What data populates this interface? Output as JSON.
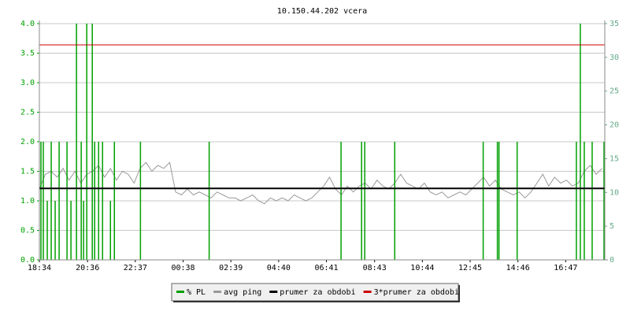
{
  "chart_data": {
    "type": "rrd-line",
    "title": "10.150.44.202 vcera",
    "xlim": [
      0,
      1432
    ],
    "xticks": [
      {
        "value": 0,
        "label": "18:34"
      },
      {
        "value": 122,
        "label": "20:36"
      },
      {
        "value": 243,
        "label": "22:37"
      },
      {
        "value": 364,
        "label": "00:38"
      },
      {
        "value": 485,
        "label": "02:39"
      },
      {
        "value": 606,
        "label": "04:40"
      },
      {
        "value": 727,
        "label": "06:41"
      },
      {
        "value": 849,
        "label": "08:43"
      },
      {
        "value": 970,
        "label": "10:44"
      },
      {
        "value": 1091,
        "label": "12:45"
      },
      {
        "value": 1212,
        "label": "14:46"
      },
      {
        "value": 1333,
        "label": "16:47"
      }
    ],
    "ylim": [
      0,
      4
    ],
    "yticks": [
      {
        "value": 0,
        "label": "0.0"
      },
      {
        "value": 0.5,
        "label": "0.5"
      },
      {
        "value": 1,
        "label": "1.0"
      },
      {
        "value": 1.5,
        "label": "1.5"
      },
      {
        "value": 2,
        "label": "2.0"
      },
      {
        "value": 2.5,
        "label": "2.5"
      },
      {
        "value": 3,
        "label": "3.0"
      },
      {
        "value": 3.5,
        "label": "3.5"
      },
      {
        "value": 4,
        "label": "4.0"
      }
    ],
    "y2lim": [
      0,
      35
    ],
    "y2ticks": [
      0,
      5,
      10,
      15,
      20,
      25,
      30,
      35
    ],
    "grid": true,
    "series": [
      {
        "name": "% PL",
        "color": "#00a000",
        "axis": "y2",
        "style": "impulse",
        "x": [
          4,
          10,
          20,
          30,
          40,
          50,
          70,
          80,
          94,
          106,
          112,
          120,
          134,
          140,
          150,
          160,
          180,
          190,
          256,
          430,
          764,
          816,
          824,
          900,
          1124,
          1160,
          1164,
          1210,
          1360,
          1370,
          1380,
          1400,
          1430
        ],
        "values": [
          17.5,
          17.5,
          8.75,
          17.5,
          8.75,
          17.5,
          17.5,
          8.75,
          35,
          17.5,
          8.75,
          35,
          35,
          17.5,
          17.5,
          17.5,
          8.75,
          17.5,
          17.5,
          17.5,
          17.5,
          17.5,
          17.5,
          17.5,
          17.5,
          17.5,
          17.5,
          17.5,
          17.5,
          35,
          17.5,
          17.5,
          17.5
        ]
      },
      {
        "name": "avg ping",
        "color": "#999999",
        "style": "line",
        "x": [
          0,
          15,
          30,
          45,
          60,
          75,
          90,
          105,
          120,
          135,
          150,
          165,
          180,
          195,
          210,
          225,
          240,
          255,
          270,
          285,
          300,
          315,
          330,
          345,
          360,
          375,
          390,
          405,
          420,
          435,
          450,
          465,
          480,
          495,
          510,
          525,
          540,
          555,
          570,
          585,
          600,
          615,
          630,
          645,
          660,
          675,
          690,
          705,
          720,
          735,
          750,
          765,
          780,
          795,
          810,
          825,
          840,
          855,
          870,
          885,
          900,
          915,
          930,
          945,
          960,
          975,
          990,
          1005,
          1020,
          1035,
          1050,
          1065,
          1080,
          1095,
          1110,
          1125,
          1140,
          1155,
          1170,
          1185,
          1200,
          1215,
          1230,
          1245,
          1260,
          1275,
          1290,
          1305,
          1320,
          1335,
          1350,
          1365,
          1380,
          1395,
          1410,
          1425
        ],
        "values": [
          1.2,
          1.45,
          1.5,
          1.4,
          1.55,
          1.35,
          1.5,
          1.3,
          1.45,
          1.5,
          1.6,
          1.4,
          1.55,
          1.35,
          1.5,
          1.45,
          1.3,
          1.55,
          1.65,
          1.5,
          1.6,
          1.55,
          1.65,
          1.15,
          1.1,
          1.2,
          1.1,
          1.15,
          1.1,
          1.05,
          1.15,
          1.1,
          1.05,
          1.05,
          1.0,
          1.05,
          1.1,
          1.0,
          0.95,
          1.05,
          1.0,
          1.05,
          1.0,
          1.1,
          1.05,
          1.0,
          1.05,
          1.15,
          1.25,
          1.4,
          1.2,
          1.1,
          1.25,
          1.15,
          1.25,
          1.3,
          1.2,
          1.35,
          1.25,
          1.2,
          1.3,
          1.45,
          1.3,
          1.25,
          1.2,
          1.3,
          1.15,
          1.1,
          1.15,
          1.05,
          1.1,
          1.15,
          1.1,
          1.2,
          1.3,
          1.4,
          1.25,
          1.35,
          1.2,
          1.15,
          1.1,
          1.15,
          1.05,
          1.15,
          1.3,
          1.45,
          1.25,
          1.4,
          1.3,
          1.35,
          1.25,
          1.3,
          1.5,
          1.6,
          1.45,
          1.55
        ]
      },
      {
        "name": "prumer za obdobi",
        "color": "#000000",
        "style": "hline",
        "value": 1.21
      },
      {
        "name": "3*prumer za obdobi",
        "color": "#cc0000",
        "style": "hline",
        "value": 3.64
      }
    ]
  }
}
